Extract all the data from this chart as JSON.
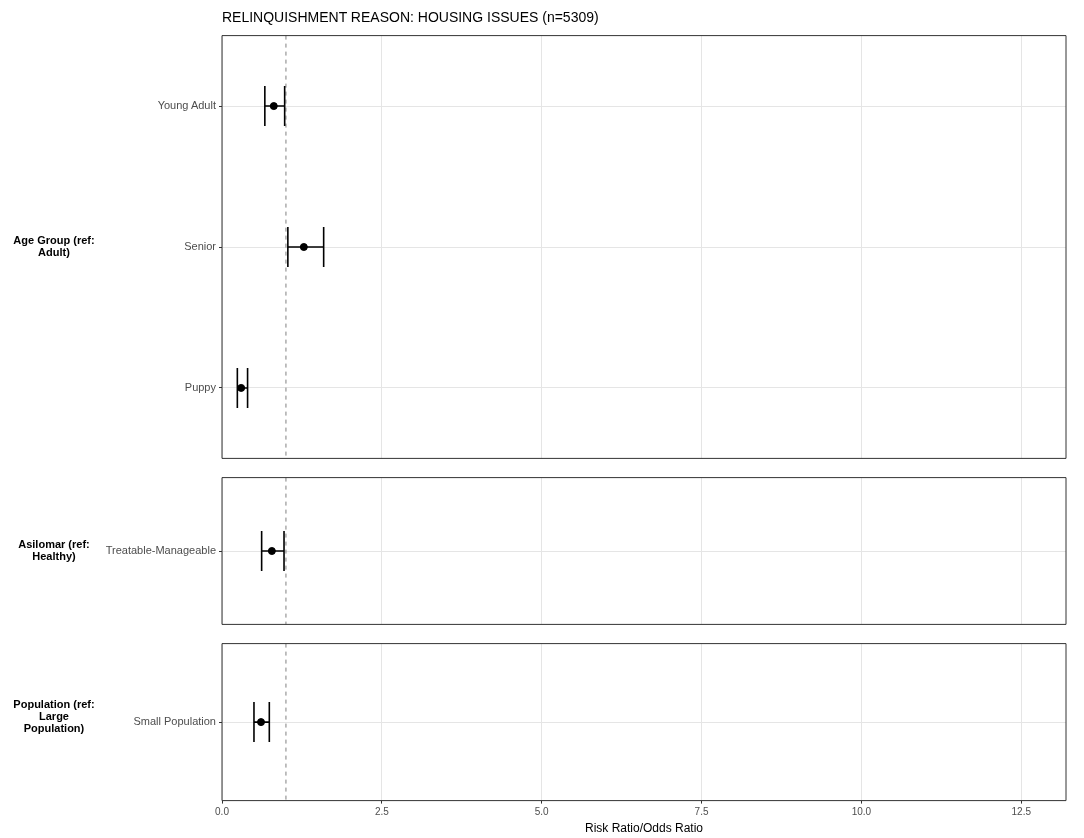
{
  "chart_data": [
    {
      "type": "scatter",
      "title": "RELINQUISHMENT REASON: HOUSING ISSUES (n=5309)",
      "ylabel": "Age Group (ref: Adult)",
      "orientation": "horizontal",
      "categories": [
        "Young Adult",
        "Senior",
        "Puppy"
      ],
      "values": [
        0.81,
        1.28,
        0.3
      ],
      "errors": [
        [
          0.67,
          0.98
        ],
        [
          1.03,
          1.59
        ],
        [
          0.24,
          0.4
        ]
      ],
      "color": "#000000",
      "marker": "circle",
      "xlim": [
        0,
        13.2
      ],
      "xticks": [
        {
          "value": 0,
          "label": null
        },
        {
          "value": 2.5,
          "label": null
        },
        {
          "value": 5,
          "label": null
        },
        {
          "value": 7.5,
          "label": null
        },
        {
          "value": 10,
          "label": null
        },
        {
          "value": 12.5,
          "label": null
        }
      ],
      "grid": true,
      "tick_labels": "y",
      "ref_lines": [
        {
          "axis": "x",
          "value": 1,
          "color": "#808080",
          "line_style": "dashed"
        }
      ]
    },
    {
      "type": "scatter",
      "ylabel": "Asilomar (ref: Healthy)",
      "orientation": "horizontal",
      "categories": [
        "Treatable-Manageable"
      ],
      "values": [
        0.78
      ],
      "errors": [
        [
          0.62,
          0.97
        ]
      ],
      "color": "#000000",
      "marker": "circle",
      "xlim": [
        0,
        13.2
      ],
      "xticks": [
        {
          "value": 0,
          "label": null
        },
        {
          "value": 2.5,
          "label": null
        },
        {
          "value": 5,
          "label": null
        },
        {
          "value": 7.5,
          "label": null
        },
        {
          "value": 10,
          "label": null
        },
        {
          "value": 12.5,
          "label": null
        }
      ],
      "grid": true,
      "tick_labels": "y",
      "ref_lines": [
        {
          "axis": "x",
          "value": 1,
          "color": "#808080",
          "line_style": "dashed"
        }
      ]
    },
    {
      "type": "scatter",
      "ylabel": "Population (ref: Large Population)",
      "xlabel": "Risk Ratio/Odds Ratio",
      "orientation": "horizontal",
      "categories": [
        "Small Population"
      ],
      "values": [
        0.61
      ],
      "errors": [
        [
          0.5,
          0.74
        ]
      ],
      "color": "#000000",
      "marker": "circle",
      "xlim": [
        0,
        13.2
      ],
      "xticks": [
        {
          "value": 0,
          "label": "0.0"
        },
        2.5,
        {
          "value": 5,
          "label": "5.0"
        },
        7.5,
        {
          "value": 10,
          "label": "10.0"
        },
        12.5
      ],
      "grid": true,
      "ref_lines": [
        {
          "axis": "x",
          "value": 1,
          "color": "#808080",
          "line_style": "dashed"
        }
      ]
    }
  ]
}
